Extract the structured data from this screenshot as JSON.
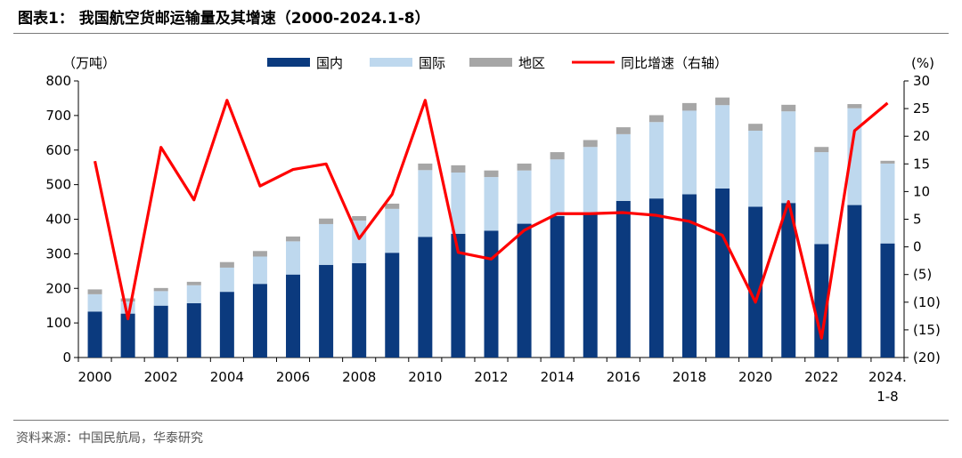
{
  "title": "图表1：  我国航空货邮运输量及其增速（2000-2024.1-8）",
  "source": "资料来源：中国民航局，华泰研究",
  "colors": {
    "domestic": "#0b3a7e",
    "international": "#bed8ee",
    "regional": "#a6a6a6",
    "growth": "#ff0000"
  },
  "chart_data": {
    "type": "bar",
    "stacked": true,
    "left_axis_unit": "（万吨）",
    "right_axis_unit": "(%)",
    "ylim": [
      0,
      800
    ],
    "y_ticks": [
      "0",
      "100",
      "200",
      "300",
      "400",
      "500",
      "600",
      "700",
      "800"
    ],
    "y2lim": [
      -20,
      30
    ],
    "y2_ticks": [
      "(20)",
      "(15)",
      "(10)",
      "(5)",
      "0",
      "5",
      "10",
      "15",
      "20",
      "25",
      "30"
    ],
    "categories": [
      "2000",
      "2001",
      "2002",
      "2003",
      "2004",
      "2005",
      "2006",
      "2007",
      "2008",
      "2009",
      "2010",
      "2011",
      "2012",
      "2013",
      "2014",
      "2015",
      "2016",
      "2017",
      "2018",
      "2019",
      "2020",
      "2021",
      "2022",
      "2023",
      "2024.1-8"
    ],
    "x_tick_labels": [
      "2000",
      "",
      "2002",
      "",
      "2004",
      "",
      "2006",
      "",
      "2008",
      "",
      "2010",
      "",
      "2012",
      "",
      "2014",
      "",
      "2016",
      "",
      "2018",
      "",
      "2020",
      "",
      "2022",
      "",
      "2024.\n1-8"
    ],
    "series": [
      {
        "name": "国内",
        "kind": "bar",
        "values": [
          133,
          127,
          150,
          157,
          190,
          213,
          240,
          268,
          273,
          303,
          349,
          358,
          367,
          387,
          409,
          414,
          453,
          460,
          472,
          489,
          436,
          447,
          328,
          441,
          330
        ]
      },
      {
        "name": "国际",
        "kind": "bar",
        "values": [
          50,
          35,
          42,
          52,
          70,
          79,
          96,
          118,
          123,
          127,
          193,
          177,
          155,
          154,
          164,
          195,
          193,
          221,
          242,
          241,
          220,
          265,
          266,
          280,
          231
        ]
      },
      {
        "name": "地区",
        "kind": "bar",
        "values": [
          14,
          9,
          9,
          10,
          16,
          16,
          14,
          16,
          13,
          15,
          19,
          21,
          19,
          20,
          21,
          20,
          20,
          20,
          22,
          22,
          20,
          19,
          15,
          12,
          8
        ]
      },
      {
        "name": "同比增速（右轴）",
        "kind": "line",
        "axis": "right",
        "values": [
          15.5,
          -13,
          18,
          8.5,
          26.5,
          11,
          14,
          15,
          1.5,
          9.5,
          26.5,
          -1,
          -2.2,
          3,
          6,
          6,
          6.2,
          5.7,
          4.6,
          2.1,
          -10,
          8.2,
          -16.5,
          21,
          26
        ]
      }
    ],
    "legend_position": "top"
  }
}
